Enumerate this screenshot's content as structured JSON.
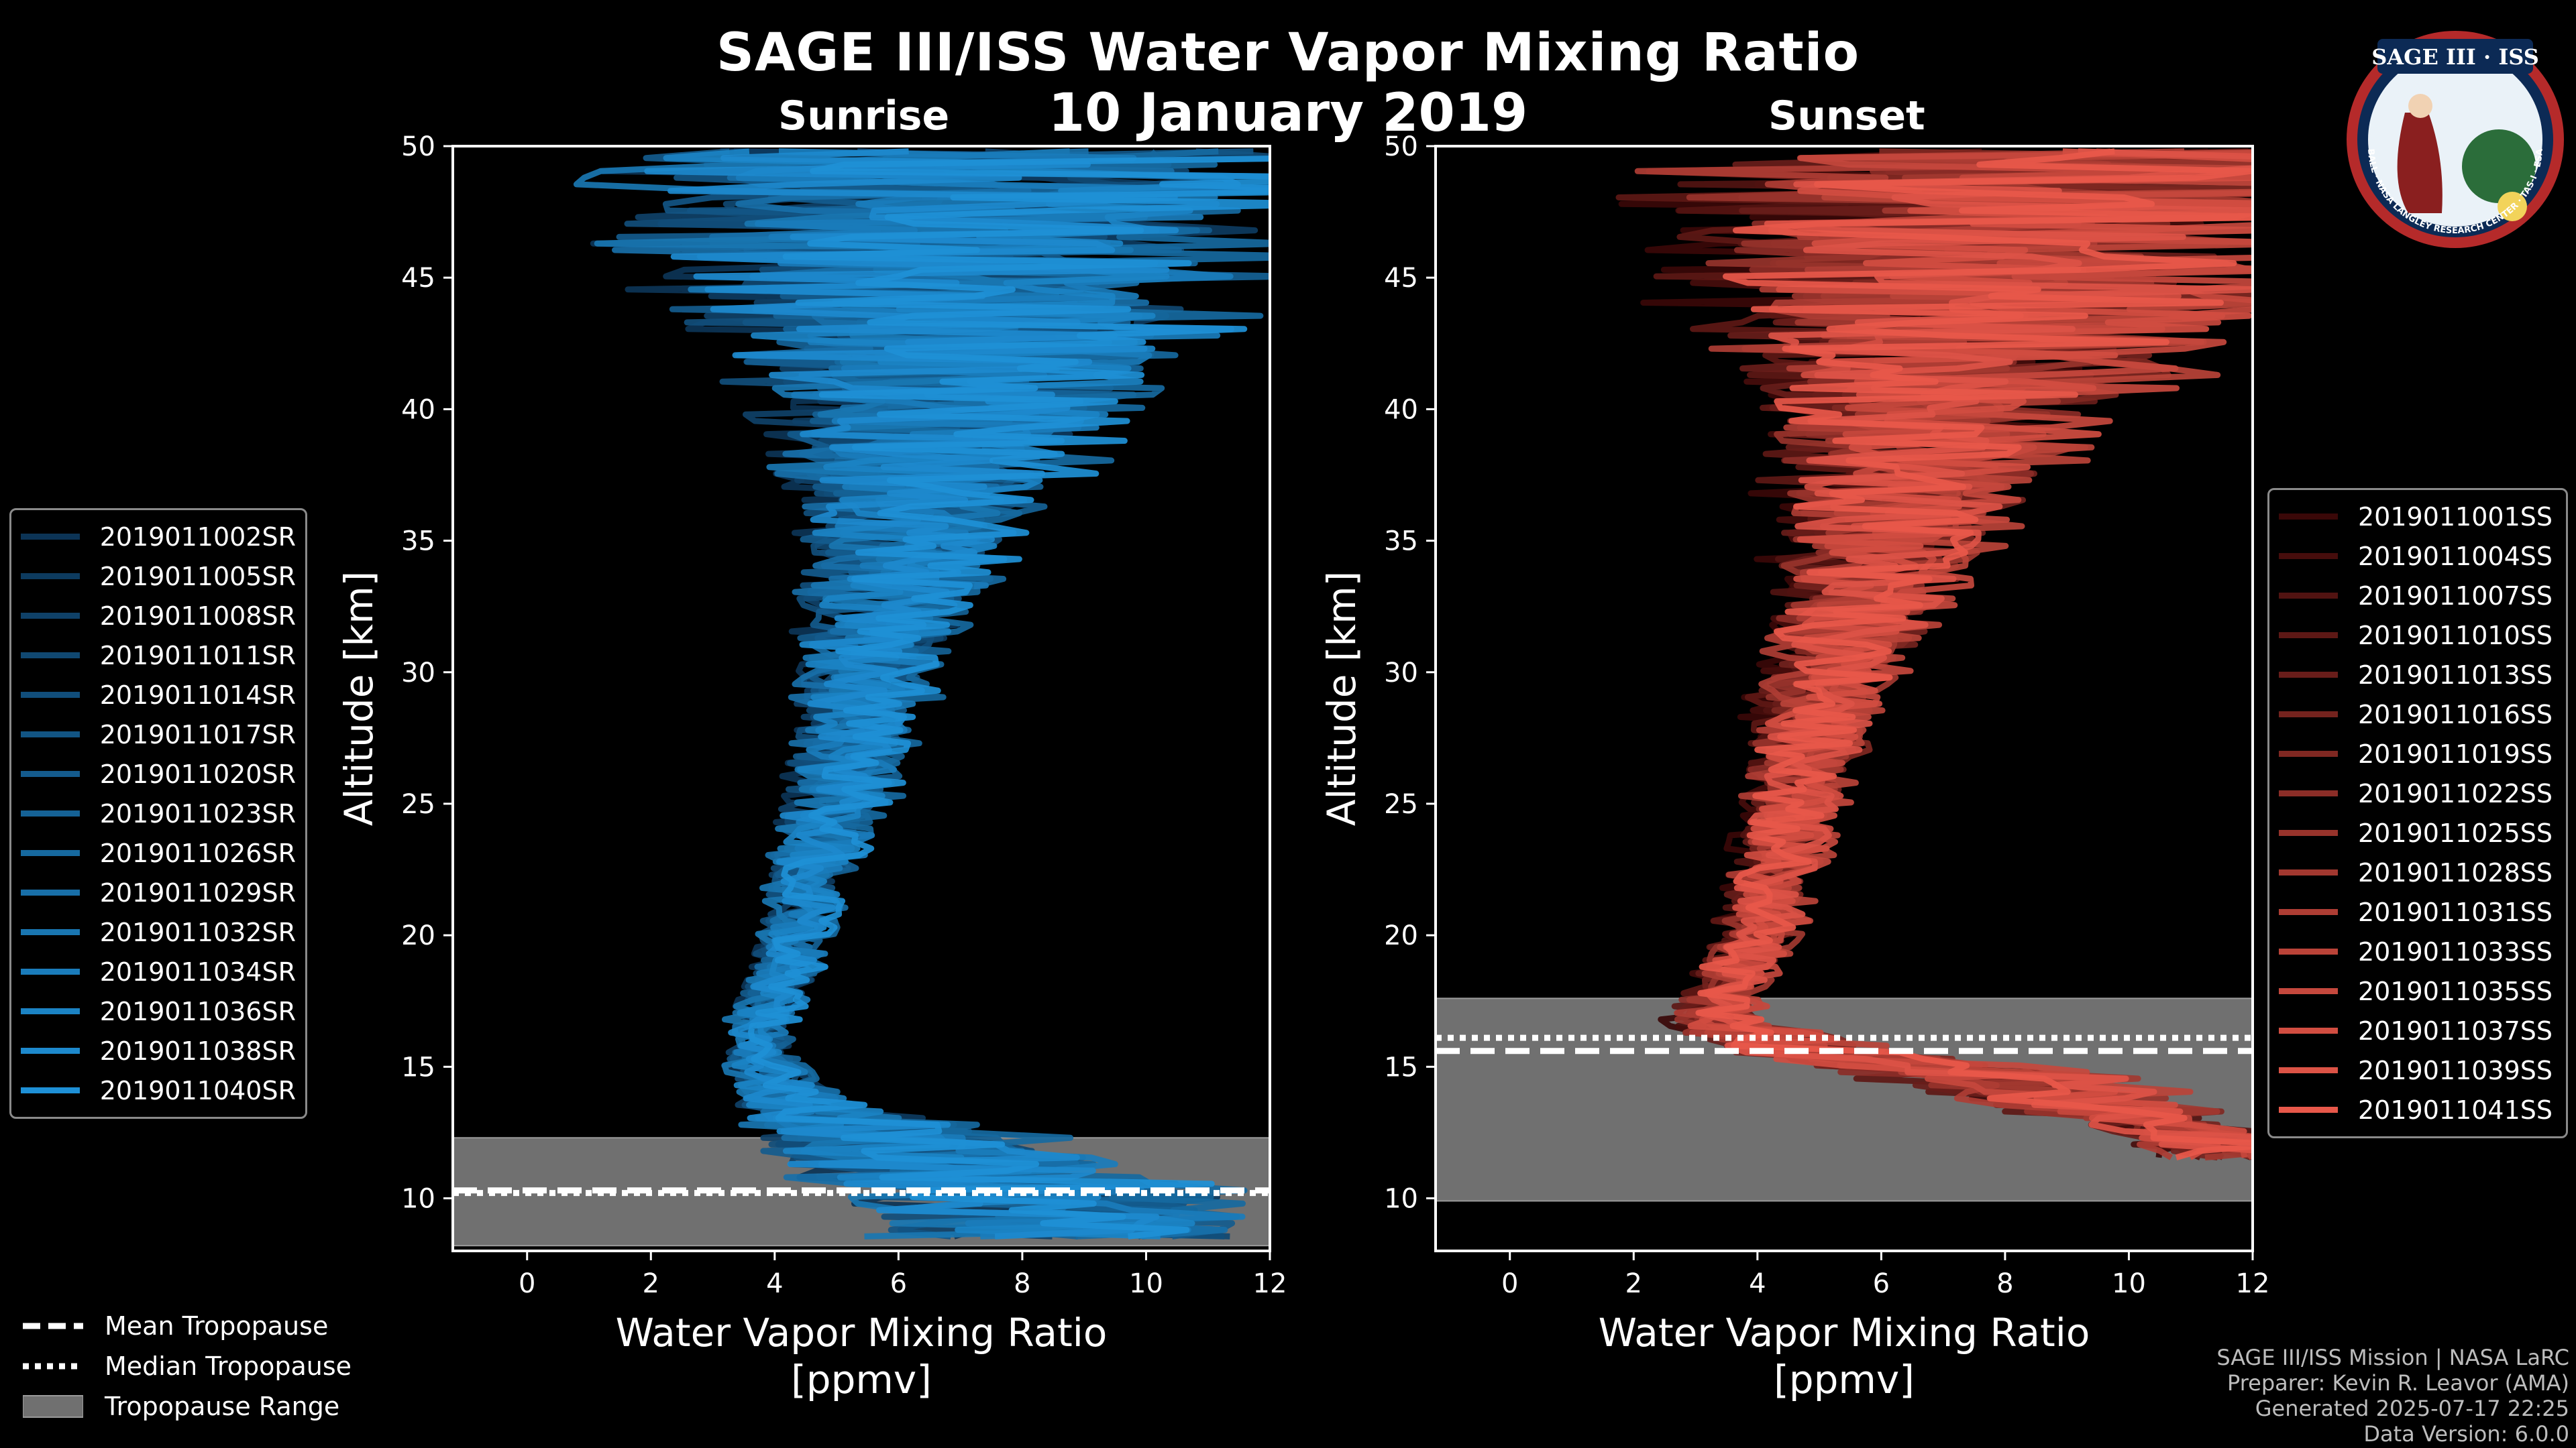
{
  "header": {
    "title": "SAGE III/ISS Water Vapor Mixing Ratio",
    "date": "10 January 2019",
    "left_label": "Sunrise",
    "right_label": "Sunset"
  },
  "logo": {
    "line1": "SAGE III · ISS",
    "ring_text": "BALL · NASA LANGLEY RESEARCH CENTER · TAS-I · ESA"
  },
  "legend_sunrise": [
    "2019011002SR",
    "2019011005SR",
    "2019011008SR",
    "2019011011SR",
    "2019011014SR",
    "2019011017SR",
    "2019011020SR",
    "2019011023SR",
    "2019011026SR",
    "2019011029SR",
    "2019011032SR",
    "2019011034SR",
    "2019011036SR",
    "2019011038SR",
    "2019011040SR"
  ],
  "legend_sunset": [
    "2019011001SS",
    "2019011004SS",
    "2019011007SS",
    "2019011010SS",
    "2019011013SS",
    "2019011016SS",
    "2019011019SS",
    "2019011022SS",
    "2019011025SS",
    "2019011028SS",
    "2019011031SS",
    "2019011033SS",
    "2019011035SS",
    "2019011037SS",
    "2019011039SS",
    "2019011041SS"
  ],
  "tropopause_legend": {
    "mean": "Mean Tropopause",
    "median": "Median Tropopause",
    "range": "Tropopause Range"
  },
  "footer": {
    "line1": "SAGE III/ISS Mission | NASA LaRC",
    "line2": "Preparer: Kevin R. Leavor (AMA)",
    "line3": "Generated 2025-07-17 22:25",
    "line4": "Data Version: 6.0.0"
  },
  "colors": {
    "sunrise": "#1e90d6",
    "sunset": "#e8584a",
    "trop_range": "#707070"
  },
  "chart_data": [
    {
      "type": "line",
      "name": "Sunrise",
      "xlabel": "Water Vapor Mixing Ratio\n[ppmv]",
      "ylabel": "Altitude [km]",
      "xlim": [
        -1.2,
        12
      ],
      "ylim": [
        8,
        50
      ],
      "xticks": [
        0,
        2,
        4,
        6,
        8,
        10,
        12
      ],
      "yticks": [
        10,
        15,
        20,
        25,
        30,
        35,
        40,
        45,
        50
      ],
      "tropopause": {
        "mean": 10.3,
        "median": 10.2,
        "range": [
          8.2,
          12.3
        ]
      },
      "profile_shape": {
        "altitudes": [
          8.5,
          9.5,
          10.5,
          11.5,
          12.5,
          13.5,
          14.5,
          15.5,
          16.5,
          17.5,
          18.5,
          20,
          22,
          24,
          26,
          28,
          30,
          32,
          34,
          36,
          38,
          40,
          42,
          44,
          46,
          48,
          49.8
        ],
        "mean": [
          9.5,
          9.0,
          8.0,
          7.0,
          6.0,
          4.5,
          4.0,
          3.8,
          3.8,
          4.0,
          4.2,
          4.4,
          4.6,
          4.9,
          5.2,
          5.4,
          5.6,
          5.9,
          6.2,
          6.5,
          6.8,
          7.0,
          7.2,
          7.4,
          7.6,
          7.8,
          8.0
        ],
        "spread": [
          3.0,
          3.0,
          2.8,
          2.5,
          2.0,
          1.0,
          0.6,
          0.5,
          0.5,
          0.5,
          0.5,
          0.5,
          0.6,
          0.7,
          0.8,
          0.9,
          1.0,
          1.2,
          1.4,
          1.7,
          2.2,
          2.8,
          3.5,
          4.2,
          4.8,
          5.2,
          5.5
        ]
      },
      "n_profiles": 15
    },
    {
      "type": "line",
      "name": "Sunset",
      "xlabel": "Water Vapor Mixing Ratio\n[ppmv]",
      "ylabel": "Altitude [km]",
      "xlim": [
        -1.2,
        12
      ],
      "ylim": [
        8,
        50
      ],
      "xticks": [
        0,
        2,
        4,
        6,
        8,
        10,
        12
      ],
      "yticks": [
        10,
        15,
        20,
        25,
        30,
        35,
        40,
        45,
        50
      ],
      "tropopause": {
        "mean": 15.6,
        "median": 16.1,
        "range": [
          9.9,
          17.6
        ]
      },
      "profile_shape": {
        "altitudes": [
          11.3,
          12.5,
          13.5,
          14.5,
          15.5,
          16.5,
          17.5,
          18.5,
          20,
          22,
          24,
          26,
          28,
          30,
          32,
          34,
          36,
          38,
          40,
          42,
          44,
          46,
          48,
          49.8
        ],
        "mean": [
          12.0,
          11.0,
          9.5,
          8.0,
          5.0,
          3.5,
          3.3,
          3.6,
          4.0,
          4.2,
          4.5,
          4.7,
          4.9,
          5.2,
          5.5,
          5.8,
          6.2,
          6.6,
          7.0,
          7.3,
          7.6,
          7.8,
          8.0,
          8.2
        ],
        "spread": [
          1.0,
          1.2,
          1.5,
          2.0,
          1.5,
          0.8,
          0.6,
          0.6,
          0.6,
          0.6,
          0.7,
          0.8,
          0.9,
          1.0,
          1.2,
          1.4,
          1.7,
          2.1,
          2.7,
          3.4,
          4.0,
          4.6,
          5.0,
          5.3
        ]
      },
      "n_profiles": 16
    }
  ]
}
